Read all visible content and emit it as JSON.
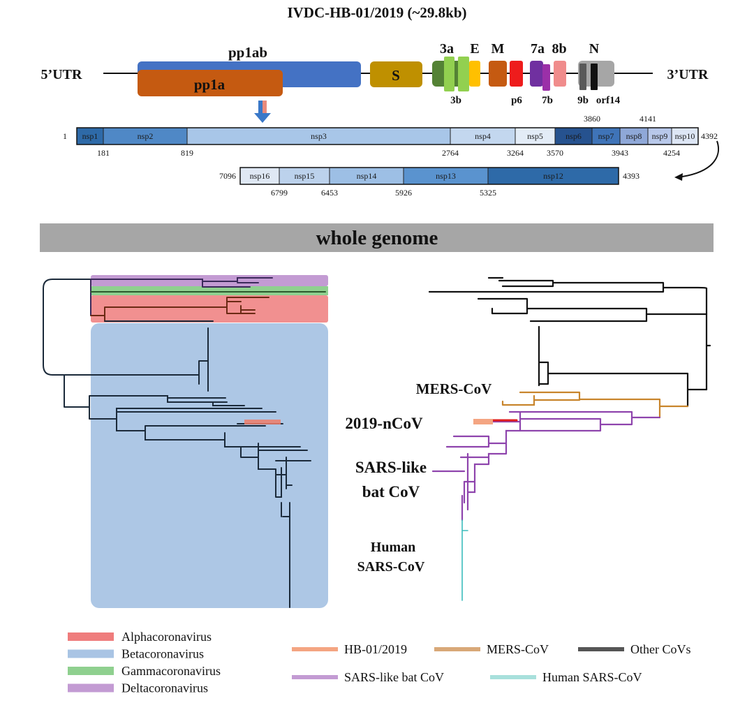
{
  "title": "IVDC-HB-01/2019  (~29.8kb)",
  "genome": {
    "utr5": "5’UTR",
    "utr3": "3’UTR",
    "genes": {
      "pp1ab": {
        "label": "pp1ab",
        "color": "#4472c4"
      },
      "pp1a": {
        "label": "pp1a",
        "color": "#c55a11"
      },
      "S": {
        "label": "S",
        "color": "#bf9000"
      },
      "3a": {
        "label": "3a",
        "color": "#548235"
      },
      "3b": {
        "label": "3b",
        "color": "#92d050"
      },
      "E": {
        "label": "E",
        "color": "#ffc000"
      },
      "M": {
        "label": "M",
        "color": "#c55a11"
      },
      "p6": {
        "label": "p6",
        "color": "#ee1c1c"
      },
      "7a": {
        "label": "7a",
        "color": "#7030a0"
      },
      "7b": {
        "label": "7b",
        "color": "#9b30a8"
      },
      "8b": {
        "label": "8b",
        "color": "#f08c8c"
      },
      "N": {
        "label": "N",
        "color": "#a6a6a6"
      },
      "9b": {
        "label": "9b",
        "color": "#595959"
      },
      "orf14": {
        "label": "orf14",
        "color": "#111111"
      }
    }
  },
  "nsp_top": {
    "start": "1",
    "end": "4392",
    "segments": [
      {
        "label": "nsp1",
        "color": "#2e6aa8"
      },
      {
        "label": "nsp2",
        "color": "#4f88c6"
      },
      {
        "label": "nsp3",
        "color": "#a8c6e8"
      },
      {
        "label": "nsp4",
        "color": "#c3d7ef"
      },
      {
        "label": "nsp5",
        "color": "#e3ecf7"
      },
      {
        "label": "nsp6",
        "color": "#26528f"
      },
      {
        "label": "nsp7",
        "color": "#3f74b8"
      },
      {
        "label": "nsp8",
        "color": "#8fa8d8"
      },
      {
        "label": "nsp9",
        "color": "#b8c8ea"
      },
      {
        "label": "nsp10",
        "color": "#dde6f5"
      }
    ],
    "below_positions": [
      "181",
      "819",
      "2764",
      "3264",
      "3570",
      "3943",
      "4254"
    ],
    "above_positions": [
      "3860",
      "4141"
    ]
  },
  "nsp_bottom": {
    "start": "7096",
    "end": "4393",
    "segments": [
      {
        "label": "nsp16",
        "color": "#dfe8f4"
      },
      {
        "label": "nsp15",
        "color": "#bcd2ec"
      },
      {
        "label": "nsp14",
        "color": "#9dbfe5"
      },
      {
        "label": "nsp13",
        "color": "#5a93cf"
      },
      {
        "label": "nsp12",
        "color": "#2e6aa8"
      }
    ],
    "below_positions": [
      "6799",
      "6453",
      "5926",
      "5325"
    ]
  },
  "banner": "whole genome",
  "clade_labels": {
    "mers": {
      "text": "MERS-CoV",
      "color": "#c0792a"
    },
    "ncov": {
      "text": "2019-nCoV",
      "color": "#e01b1b"
    },
    "sars_like_1": {
      "text": "SARS-like",
      "color": "#7d3d9a"
    },
    "sars_like_2": {
      "text": "bat CoV",
      "color": "#7d3d9a"
    },
    "human_1": {
      "text": "Human",
      "color": "#3bbcbc"
    },
    "human_2": {
      "text": "SARS-CoV",
      "color": "#3bbcbc"
    }
  },
  "legend_genus": [
    {
      "label": "Alphacoronavirus",
      "color": "#ef7c7c"
    },
    {
      "label": "Betacoronavirus",
      "color": "#a9c4e4"
    },
    {
      "label": "Gammacoronavirus",
      "color": "#8fd08f"
    },
    {
      "label": "Deltacoronavirus",
      "color": "#c39bd3"
    }
  ],
  "legend_lineage": [
    {
      "label": "HB-01/2019",
      "color": "#f4a582"
    },
    {
      "label": "MERS-CoV",
      "color": "#d8a878"
    },
    {
      "label": "Other CoVs",
      "color": "#555555"
    },
    {
      "label": "SARS-like bat CoV",
      "color": "#c39bd3"
    },
    {
      "label": "Human SARS-CoV",
      "color": "#a8e0dc"
    }
  ]
}
